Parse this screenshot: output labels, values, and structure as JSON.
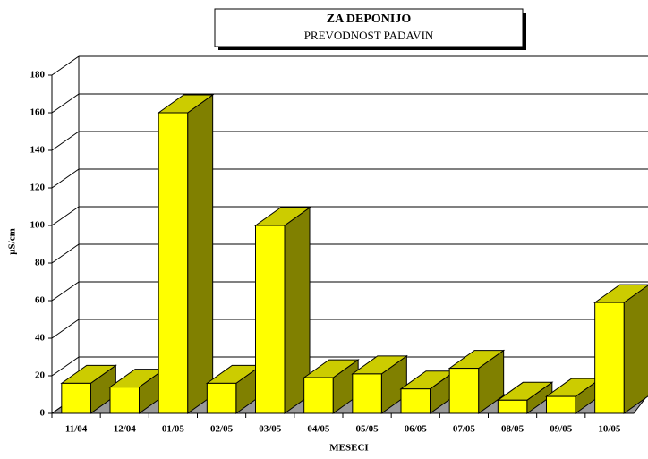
{
  "chart_data": {
    "type": "bar3d",
    "title": "ZA DEPONIJO",
    "subtitle": "PREVODNOST PADAVIN",
    "x_label": "MESECI",
    "y_label": "µS/cm",
    "categories": [
      "11/04",
      "12/04",
      "01/05",
      "02/05",
      "03/05",
      "04/05",
      "05/05",
      "06/05",
      "07/05",
      "08/05",
      "09/05",
      "10/05"
    ],
    "values": [
      16,
      14,
      160,
      16,
      100,
      19,
      21,
      13,
      24,
      7,
      9,
      59
    ],
    "color": "#ffff00",
    "top_color": "#cccc00",
    "side_color": "#808000",
    "ylim": [
      0,
      180
    ],
    "yticks": [
      0,
      20,
      40,
      60,
      80,
      100,
      120,
      140,
      160,
      180
    ],
    "grid": true
  }
}
